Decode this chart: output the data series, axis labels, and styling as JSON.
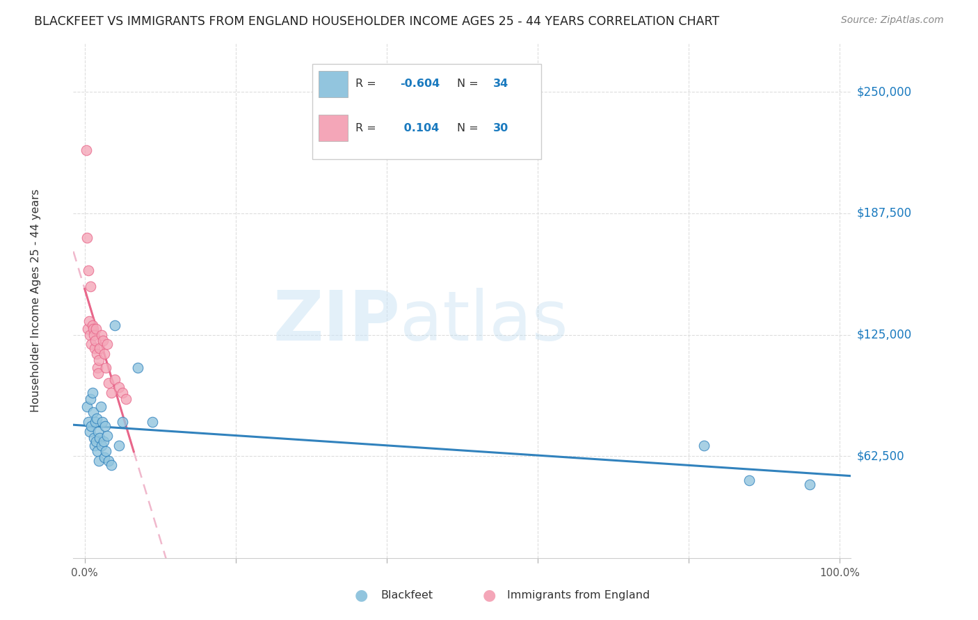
{
  "title": "BLACKFEET VS IMMIGRANTS FROM ENGLAND HOUSEHOLDER INCOME AGES 25 - 44 YEARS CORRELATION CHART",
  "source": "Source: ZipAtlas.com",
  "ylabel": "Householder Income Ages 25 - 44 years",
  "ytick_labels": [
    "$62,500",
    "$125,000",
    "$187,500",
    "$250,000"
  ],
  "ytick_values": [
    62500,
    125000,
    187500,
    250000
  ],
  "ymin": 10000,
  "ymax": 275000,
  "xmin": -0.015,
  "xmax": 1.015,
  "legend_label1": "Blackfeet",
  "legend_label2": "Immigrants from England",
  "legend_R1": "-0.604",
  "legend_N1": "34",
  "legend_R2": " 0.104",
  "legend_N2": "30",
  "color_blue": "#92c5de",
  "color_pink": "#f4a6b8",
  "color_blue_line": "#3182bd",
  "color_pink_line": "#e8668a",
  "color_pink_dashed": "#f0b8cc",
  "blackfeet_x": [
    0.003,
    0.005,
    0.007,
    0.008,
    0.009,
    0.01,
    0.011,
    0.012,
    0.013,
    0.014,
    0.015,
    0.016,
    0.017,
    0.018,
    0.019,
    0.02,
    0.021,
    0.022,
    0.023,
    0.025,
    0.026,
    0.027,
    0.028,
    0.03,
    0.032,
    0.035,
    0.04,
    0.045,
    0.05,
    0.07,
    0.09,
    0.82,
    0.88,
    0.96
  ],
  "blackfeet_y": [
    88000,
    80000,
    75000,
    92000,
    78000,
    95000,
    85000,
    72000,
    68000,
    80000,
    70000,
    82000,
    65000,
    75000,
    60000,
    72000,
    88000,
    68000,
    80000,
    70000,
    62000,
    78000,
    65000,
    73000,
    60000,
    58000,
    130000,
    68000,
    80000,
    108000,
    80000,
    68000,
    50000,
    48000
  ],
  "england_x": [
    0.002,
    0.003,
    0.004,
    0.005,
    0.006,
    0.007,
    0.008,
    0.009,
    0.01,
    0.011,
    0.012,
    0.013,
    0.014,
    0.015,
    0.016,
    0.017,
    0.018,
    0.019,
    0.02,
    0.022,
    0.024,
    0.026,
    0.028,
    0.03,
    0.032,
    0.035,
    0.04,
    0.045,
    0.05,
    0.055
  ],
  "england_y": [
    220000,
    175000,
    128000,
    158000,
    132000,
    125000,
    150000,
    120000,
    130000,
    128000,
    125000,
    118000,
    122000,
    128000,
    115000,
    108000,
    105000,
    112000,
    118000,
    125000,
    122000,
    115000,
    108000,
    120000,
    100000,
    95000,
    102000,
    98000,
    95000,
    92000
  ]
}
